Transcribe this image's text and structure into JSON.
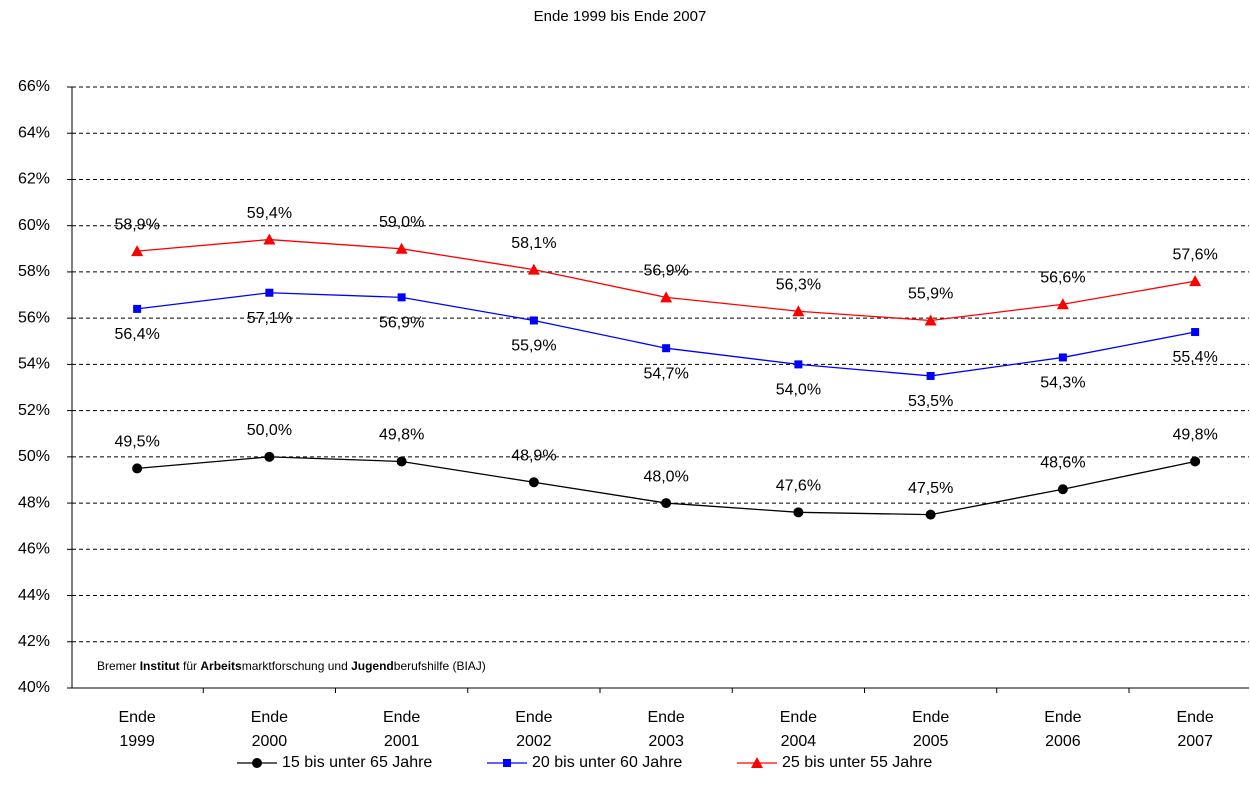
{
  "chart_data": {
    "type": "line",
    "subtitle": "Ende 1999 bis Ende 2007",
    "source_note": [
      {
        "text": "Bremer ",
        "bold": false
      },
      {
        "text": "Institut",
        "bold": true
      },
      {
        "text": " für ",
        "bold": false
      },
      {
        "text": "Arbeits",
        "bold": true
      },
      {
        "text": "marktforschung und  ",
        "bold": false
      },
      {
        "text": "Jugend",
        "bold": true
      },
      {
        "text": "berufshilfe (BIAJ)",
        "bold": false
      }
    ],
    "categories": [
      "Ende 1999",
      "Ende 2000",
      "Ende 2001",
      "Ende 2002",
      "Ende 2003",
      "Ende 2004",
      "Ende 2005",
      "Ende 2006",
      "Ende 2007"
    ],
    "series": [
      {
        "name": "15 bis unter 65 Jahre",
        "color": "#000000",
        "marker": "circle",
        "label_position": "above",
        "values": [
          49.5,
          50.0,
          49.8,
          48.9,
          48.0,
          47.6,
          47.5,
          48.6,
          49.8
        ],
        "value_labels": [
          "49,5%",
          "50,0%",
          "49,8%",
          "48,9%",
          "48,0%",
          "47,6%",
          "47,5%",
          "48,6%",
          "49,8%"
        ]
      },
      {
        "name": "20 bis unter 60 Jahre",
        "color": "#0000ff",
        "marker": "square",
        "label_position": "below",
        "values": [
          56.4,
          57.1,
          56.9,
          55.9,
          54.7,
          54.0,
          53.5,
          54.3,
          55.4
        ],
        "value_labels": [
          "56,4%",
          "57,1%",
          "56,9%",
          "55,9%",
          "54,7%",
          "54,0%",
          "53,5%",
          "54,3%",
          "55,4%"
        ]
      },
      {
        "name": "25 bis unter 55 Jahre",
        "color": "#ff0000",
        "marker": "triangle",
        "label_position": "above",
        "values": [
          58.9,
          59.4,
          59.0,
          58.1,
          56.9,
          56.3,
          55.9,
          56.6,
          57.6
        ],
        "value_labels": [
          "58,9%",
          "59,4%",
          "59,0%",
          "58,1%",
          "56,9%",
          "56,3%",
          "55,9%",
          "56,6%",
          "57,6%"
        ]
      }
    ],
    "ylim": [
      40,
      66
    ],
    "yticks": [
      {
        "value": 40,
        "label": "40%"
      },
      {
        "value": 42,
        "label": "42%"
      },
      {
        "value": 44,
        "label": "44%"
      },
      {
        "value": 46,
        "label": "46%"
      },
      {
        "value": 48,
        "label": "48%"
      },
      {
        "value": 50,
        "label": "50%"
      },
      {
        "value": 52,
        "label": "52%"
      },
      {
        "value": 54,
        "label": "54%"
      },
      {
        "value": 56,
        "label": "56%"
      },
      {
        "value": 58,
        "label": "58%"
      },
      {
        "value": 60,
        "label": "60%"
      },
      {
        "value": 62,
        "label": "62%"
      },
      {
        "value": 64,
        "label": "64%"
      },
      {
        "value": 66,
        "label": "66%"
      }
    ],
    "grid": true,
    "legend": "bottom"
  }
}
